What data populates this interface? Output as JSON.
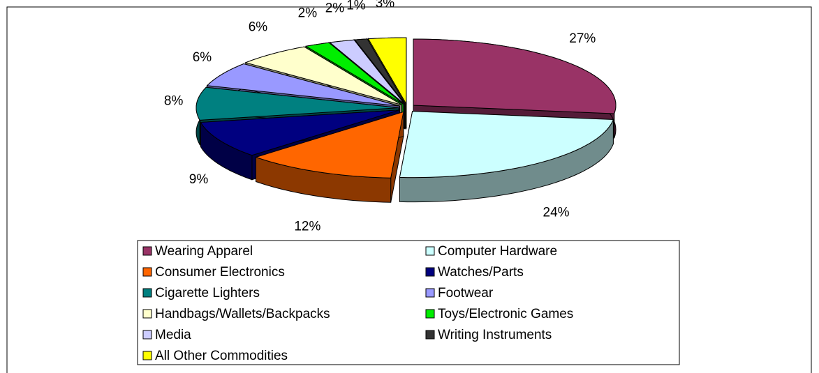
{
  "chart_data": {
    "type": "pie3d",
    "categories": [
      "Wearing Apparel",
      "Computer Hardware",
      "Consumer Electronics",
      "Watches/Parts",
      "Cigarette Lighters",
      "Footwear",
      "Handbags/Wallets/Backpacks",
      "Toys/Electronic Games",
      "Media",
      "Writing Instruments",
      "All Other Commodities"
    ],
    "values": [
      27,
      24,
      12,
      9,
      8,
      6,
      6,
      2,
      2,
      1,
      3
    ],
    "value_labels": [
      "27%",
      "24%",
      "12%",
      "9%",
      "8%",
      "6%",
      "6%",
      "2%",
      "2%",
      "1%",
      "3%"
    ],
    "colors": [
      "#993366",
      "#ccffff",
      "#ff6600",
      "#000080",
      "#008080",
      "#9999ff",
      "#ffffcc",
      "#00ee00",
      "#ccccff",
      "#333333",
      "#ffff00"
    ],
    "legend": "bottom"
  }
}
